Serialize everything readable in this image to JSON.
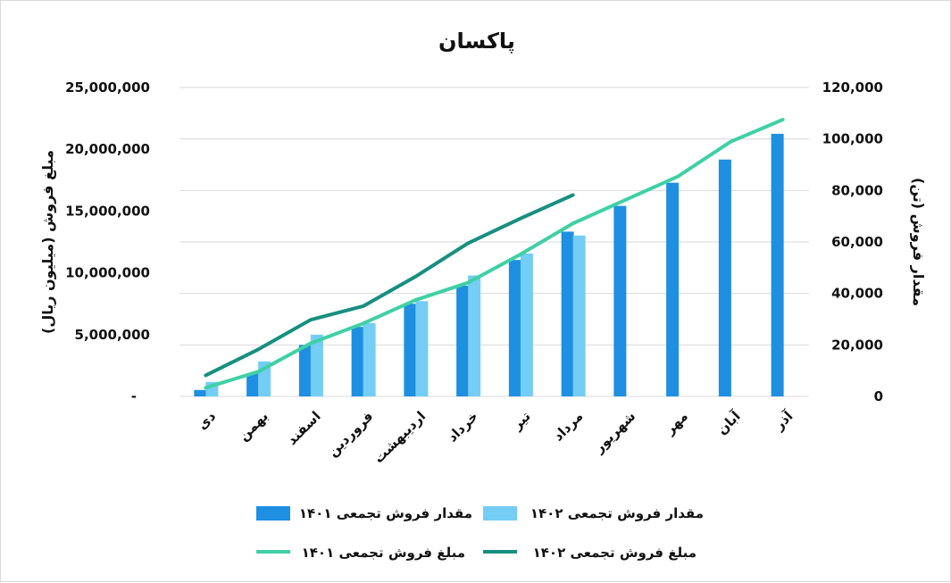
{
  "chart_data": {
    "type": "bar",
    "title": "پاکسان",
    "categories": [
      "دی",
      "بهمن",
      "اسفند",
      "فروردین",
      "اردیبهشت",
      "خرداد",
      "تیر",
      "مرداد",
      "شهریور",
      "مهر",
      "آبان",
      "آذر"
    ],
    "ylabel": "مبلغ فروش (میلیون ریال)",
    "y2label": "مقدار فروش (تن)",
    "ylim": [
      0,
      25000000
    ],
    "y2lim": [
      0,
      120000
    ],
    "yticks": [
      "-",
      "5,000,000",
      "10,000,000",
      "15,000,000",
      "20,000,000",
      "25,000,000"
    ],
    "y2ticks": [
      "0",
      "20,000",
      "40,000",
      "60,000",
      "80,000",
      "100,000",
      "120,000"
    ],
    "grid": true,
    "legend_position": "bottom",
    "series": [
      {
        "name": "مقدار فروش تجمعی ۱۴۰۱",
        "kind": "bar",
        "axis": "right",
        "color": "#1e8fe1",
        "values": [
          2500,
          9000,
          20000,
          27000,
          36000,
          43000,
          53000,
          64000,
          74000,
          83000,
          92000,
          102000
        ]
      },
      {
        "name": "مقدار فروش تجمعی ۱۴۰۲",
        "kind": "bar",
        "axis": "right",
        "color": "#74cdf5",
        "values": [
          5600,
          13600,
          24000,
          28500,
          37000,
          47000,
          55500,
          62500,
          null,
          null,
          null,
          null
        ]
      },
      {
        "name": "مبلغ فروش تجمعی ۱۴۰۱",
        "kind": "line",
        "axis": "left",
        "color": "#40d0a5",
        "values": [
          700000,
          2000000,
          4300000,
          5900000,
          7800000,
          9200000,
          11500000,
          14000000,
          15900000,
          17800000,
          20600000,
          22400000
        ]
      },
      {
        "name": "مبلغ فروش تجمعی ۱۴۰۲",
        "kind": "line",
        "axis": "left",
        "color": "#178f80",
        "values": [
          1700000,
          3800000,
          6200000,
          7300000,
          9700000,
          12400000,
          14400000,
          16300000,
          null,
          null,
          null,
          null
        ]
      }
    ]
  }
}
